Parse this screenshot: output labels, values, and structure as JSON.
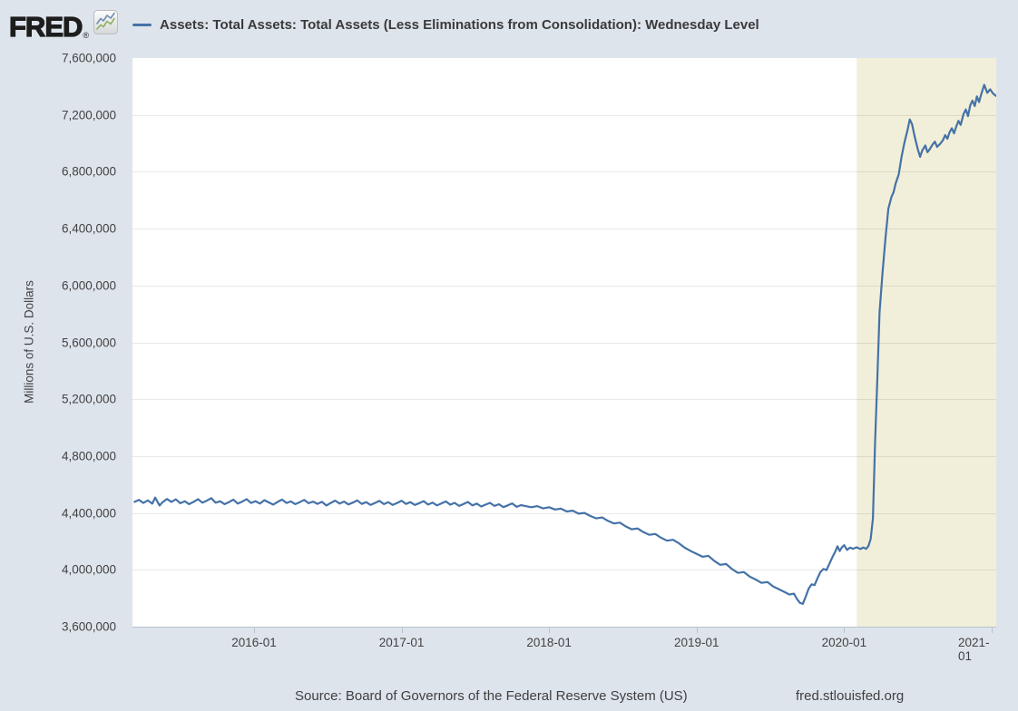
{
  "page": {
    "background": "#dee4ec"
  },
  "header": {
    "logo_text": "FRED",
    "registered_mark": "®",
    "logo_icon": "sparkline-chart-icon",
    "legend": {
      "marker_color": "#4572a7",
      "series_label": "Assets: Total Assets: Total Assets (Less Eliminations from Consolidation): Wednesday Level"
    }
  },
  "footer": {
    "source": "Source: Board of Governors of the Federal Reserve System (US)",
    "site": "fred.stlouisfed.org"
  },
  "chart_data": {
    "type": "line",
    "title": "Assets: Total Assets: Total Assets (Less Eliminations from Consolidation): Wednesday Level",
    "xlabel": "",
    "ylabel": "Millions of U.S. Dollars",
    "x_range": [
      2015.176,
      2021.031
    ],
    "ylim": [
      3600000,
      7600000
    ],
    "grid": "horizontal",
    "legend_position": "top-left",
    "line_color": "#4572a7",
    "gridline_color": "rgba(0,0,0,0.085)",
    "axis_color": "#b9c2cd",
    "y_ticks": [
      3600000,
      4000000,
      4400000,
      4800000,
      5200000,
      5600000,
      6000000,
      6400000,
      6800000,
      7200000,
      7600000
    ],
    "y_tick_labels": [
      "3,600,000",
      "4,000,000",
      "4,400,000",
      "4,800,000",
      "5,200,000",
      "5,600,000",
      "6,000,000",
      "6,400,000",
      "6,800,000",
      "7,200,000",
      "7,600,000"
    ],
    "x_ticks": [
      2016,
      2017,
      2018,
      2019,
      2020,
      2021
    ],
    "x_tick_labels": [
      "2016-01",
      "2017-01",
      "2018-01",
      "2019-01",
      "2020-01",
      "2021-01"
    ],
    "recession_band": {
      "start": 2020.086,
      "end": 2021.031,
      "color": "#f1efd9"
    },
    "series": [
      {
        "name": "Assets: Total Assets: Total Assets (Less Eliminations from Consolidation): Wednesday Level",
        "units": "Millions of U.S. Dollars",
        "points": [
          [
            2015.19,
            4478000
          ],
          [
            2015.22,
            4492000
          ],
          [
            2015.25,
            4470000
          ],
          [
            2015.28,
            4488000
          ],
          [
            2015.31,
            4465000
          ],
          [
            2015.33,
            4508000
          ],
          [
            2015.36,
            4452000
          ],
          [
            2015.38,
            4475000
          ],
          [
            2015.41,
            4498000
          ],
          [
            2015.44,
            4478000
          ],
          [
            2015.47,
            4496000
          ],
          [
            2015.5,
            4468000
          ],
          [
            2015.53,
            4482000
          ],
          [
            2015.56,
            4462000
          ],
          [
            2015.59,
            4478000
          ],
          [
            2015.62,
            4497000
          ],
          [
            2015.65,
            4472000
          ],
          [
            2015.68,
            4486000
          ],
          [
            2015.71,
            4504000
          ],
          [
            2015.74,
            4472000
          ],
          [
            2015.77,
            4482000
          ],
          [
            2015.8,
            4462000
          ],
          [
            2015.83,
            4476000
          ],
          [
            2015.86,
            4494000
          ],
          [
            2015.89,
            4466000
          ],
          [
            2015.92,
            4480000
          ],
          [
            2015.95,
            4497000
          ],
          [
            2015.98,
            4470000
          ],
          [
            2016.01,
            4483000
          ],
          [
            2016.04,
            4466000
          ],
          [
            2016.07,
            4490000
          ],
          [
            2016.1,
            4474000
          ],
          [
            2016.13,
            4459000
          ],
          [
            2016.16,
            4478000
          ],
          [
            2016.19,
            4494000
          ],
          [
            2016.22,
            4470000
          ],
          [
            2016.25,
            4481000
          ],
          [
            2016.28,
            4462000
          ],
          [
            2016.31,
            4476000
          ],
          [
            2016.34,
            4492000
          ],
          [
            2016.37,
            4468000
          ],
          [
            2016.4,
            4480000
          ],
          [
            2016.43,
            4464000
          ],
          [
            2016.46,
            4478000
          ],
          [
            2016.49,
            4452000
          ],
          [
            2016.52,
            4470000
          ],
          [
            2016.55,
            4487000
          ],
          [
            2016.58,
            4466000
          ],
          [
            2016.61,
            4480000
          ],
          [
            2016.64,
            4460000
          ],
          [
            2016.67,
            4473000
          ],
          [
            2016.7,
            4488000
          ],
          [
            2016.73,
            4463000
          ],
          [
            2016.76,
            4476000
          ],
          [
            2016.79,
            4456000
          ],
          [
            2016.82,
            4470000
          ],
          [
            2016.85,
            4485000
          ],
          [
            2016.88,
            4462000
          ],
          [
            2016.91,
            4476000
          ],
          [
            2016.94,
            4456000
          ],
          [
            2016.97,
            4470000
          ],
          [
            2017.0,
            4486000
          ],
          [
            2017.03,
            4463000
          ],
          [
            2017.06,
            4476000
          ],
          [
            2017.09,
            4456000
          ],
          [
            2017.12,
            4469000
          ],
          [
            2017.15,
            4483000
          ],
          [
            2017.18,
            4459000
          ],
          [
            2017.21,
            4473000
          ],
          [
            2017.24,
            4453000
          ],
          [
            2017.27,
            4467000
          ],
          [
            2017.3,
            4481000
          ],
          [
            2017.33,
            4458000
          ],
          [
            2017.36,
            4471000
          ],
          [
            2017.39,
            4449000
          ],
          [
            2017.42,
            4463000
          ],
          [
            2017.45,
            4477000
          ],
          [
            2017.48,
            4453000
          ],
          [
            2017.51,
            4466000
          ],
          [
            2017.54,
            4445000
          ],
          [
            2017.57,
            4459000
          ],
          [
            2017.6,
            4471000
          ],
          [
            2017.63,
            4449000
          ],
          [
            2017.66,
            4461000
          ],
          [
            2017.69,
            4441000
          ],
          [
            2017.72,
            4453000
          ],
          [
            2017.75,
            4467000
          ],
          [
            2017.78,
            4443000
          ],
          [
            2017.81,
            4455000
          ],
          [
            2017.84,
            4448000
          ],
          [
            2017.88,
            4440000
          ],
          [
            2017.92,
            4448000
          ],
          [
            2017.96,
            4432000
          ],
          [
            2018.0,
            4440000
          ],
          [
            2018.04,
            4424000
          ],
          [
            2018.08,
            4430000
          ],
          [
            2018.12,
            4410000
          ],
          [
            2018.16,
            4416000
          ],
          [
            2018.2,
            4395000
          ],
          [
            2018.24,
            4400000
          ],
          [
            2018.28,
            4378000
          ],
          [
            2018.32,
            4362000
          ],
          [
            2018.36,
            4368000
          ],
          [
            2018.4,
            4344000
          ],
          [
            2018.44,
            4326000
          ],
          [
            2018.48,
            4332000
          ],
          [
            2018.52,
            4305000
          ],
          [
            2018.56,
            4285000
          ],
          [
            2018.6,
            4291000
          ],
          [
            2018.64,
            4265000
          ],
          [
            2018.68,
            4246000
          ],
          [
            2018.72,
            4252000
          ],
          [
            2018.76,
            4225000
          ],
          [
            2018.8,
            4205000
          ],
          [
            2018.84,
            4211000
          ],
          [
            2018.88,
            4186000
          ],
          [
            2018.92,
            4155000
          ],
          [
            2018.96,
            4132000
          ],
          [
            2019.0,
            4112000
          ],
          [
            2019.04,
            4092000
          ],
          [
            2019.08,
            4098000
          ],
          [
            2019.12,
            4062000
          ],
          [
            2019.16,
            4035000
          ],
          [
            2019.2,
            4041000
          ],
          [
            2019.24,
            4005000
          ],
          [
            2019.28,
            3978000
          ],
          [
            2019.32,
            3984000
          ],
          [
            2019.36,
            3952000
          ],
          [
            2019.4,
            3932000
          ],
          [
            2019.44,
            3908000
          ],
          [
            2019.48,
            3914000
          ],
          [
            2019.52,
            3882000
          ],
          [
            2019.56,
            3862000
          ],
          [
            2019.6,
            3842000
          ],
          [
            2019.63,
            3826000
          ],
          [
            2019.66,
            3832000
          ],
          [
            2019.68,
            3795000
          ],
          [
            2019.7,
            3768000
          ],
          [
            2019.72,
            3760000
          ],
          [
            2019.74,
            3812000
          ],
          [
            2019.76,
            3868000
          ],
          [
            2019.78,
            3898000
          ],
          [
            2019.8,
            3892000
          ],
          [
            2019.82,
            3942000
          ],
          [
            2019.84,
            3985000
          ],
          [
            2019.86,
            4006000
          ],
          [
            2019.88,
            3998000
          ],
          [
            2019.9,
            4042000
          ],
          [
            2019.92,
            4088000
          ],
          [
            2019.94,
            4128000
          ],
          [
            2019.955,
            4165000
          ],
          [
            2019.97,
            4132000
          ],
          [
            2019.985,
            4158000
          ],
          [
            2020.0,
            4173000
          ],
          [
            2020.02,
            4140000
          ],
          [
            2020.04,
            4156000
          ],
          [
            2020.06,
            4148000
          ],
          [
            2020.085,
            4158000
          ],
          [
            2020.11,
            4146000
          ],
          [
            2020.13,
            4156000
          ],
          [
            2020.15,
            4148000
          ],
          [
            2020.165,
            4168000
          ],
          [
            2020.18,
            4216000
          ],
          [
            2020.195,
            4360000
          ],
          [
            2020.21,
            4900000
          ],
          [
            2020.225,
            5330000
          ],
          [
            2020.24,
            5810000
          ],
          [
            2020.26,
            6083000
          ],
          [
            2020.28,
            6330000
          ],
          [
            2020.3,
            6540000
          ],
          [
            2020.32,
            6620000
          ],
          [
            2020.335,
            6655000
          ],
          [
            2020.35,
            6720000
          ],
          [
            2020.37,
            6780000
          ],
          [
            2020.39,
            6910000
          ],
          [
            2020.41,
            7010000
          ],
          [
            2020.43,
            7095000
          ],
          [
            2020.445,
            7168000
          ],
          [
            2020.46,
            7135000
          ],
          [
            2020.48,
            7040000
          ],
          [
            2020.5,
            6955000
          ],
          [
            2020.515,
            6905000
          ],
          [
            2020.53,
            6950000
          ],
          [
            2020.55,
            6985000
          ],
          [
            2020.565,
            6938000
          ],
          [
            2020.58,
            6958000
          ],
          [
            2020.6,
            6992000
          ],
          [
            2020.615,
            7012000
          ],
          [
            2020.63,
            6975000
          ],
          [
            2020.65,
            6996000
          ],
          [
            2020.67,
            7022000
          ],
          [
            2020.685,
            7058000
          ],
          [
            2020.7,
            7032000
          ],
          [
            2020.715,
            7078000
          ],
          [
            2020.73,
            7106000
          ],
          [
            2020.745,
            7070000
          ],
          [
            2020.76,
            7118000
          ],
          [
            2020.775,
            7158000
          ],
          [
            2020.79,
            7130000
          ],
          [
            2020.81,
            7208000
          ],
          [
            2020.825,
            7238000
          ],
          [
            2020.84,
            7192000
          ],
          [
            2020.855,
            7268000
          ],
          [
            2020.87,
            7300000
          ],
          [
            2020.885,
            7262000
          ],
          [
            2020.9,
            7330000
          ],
          [
            2020.915,
            7290000
          ],
          [
            2020.93,
            7348000
          ],
          [
            2020.95,
            7412000
          ],
          [
            2020.97,
            7355000
          ],
          [
            2020.99,
            7380000
          ],
          [
            2021.01,
            7350000
          ],
          [
            2021.03,
            7334000
          ]
        ]
      }
    ]
  }
}
